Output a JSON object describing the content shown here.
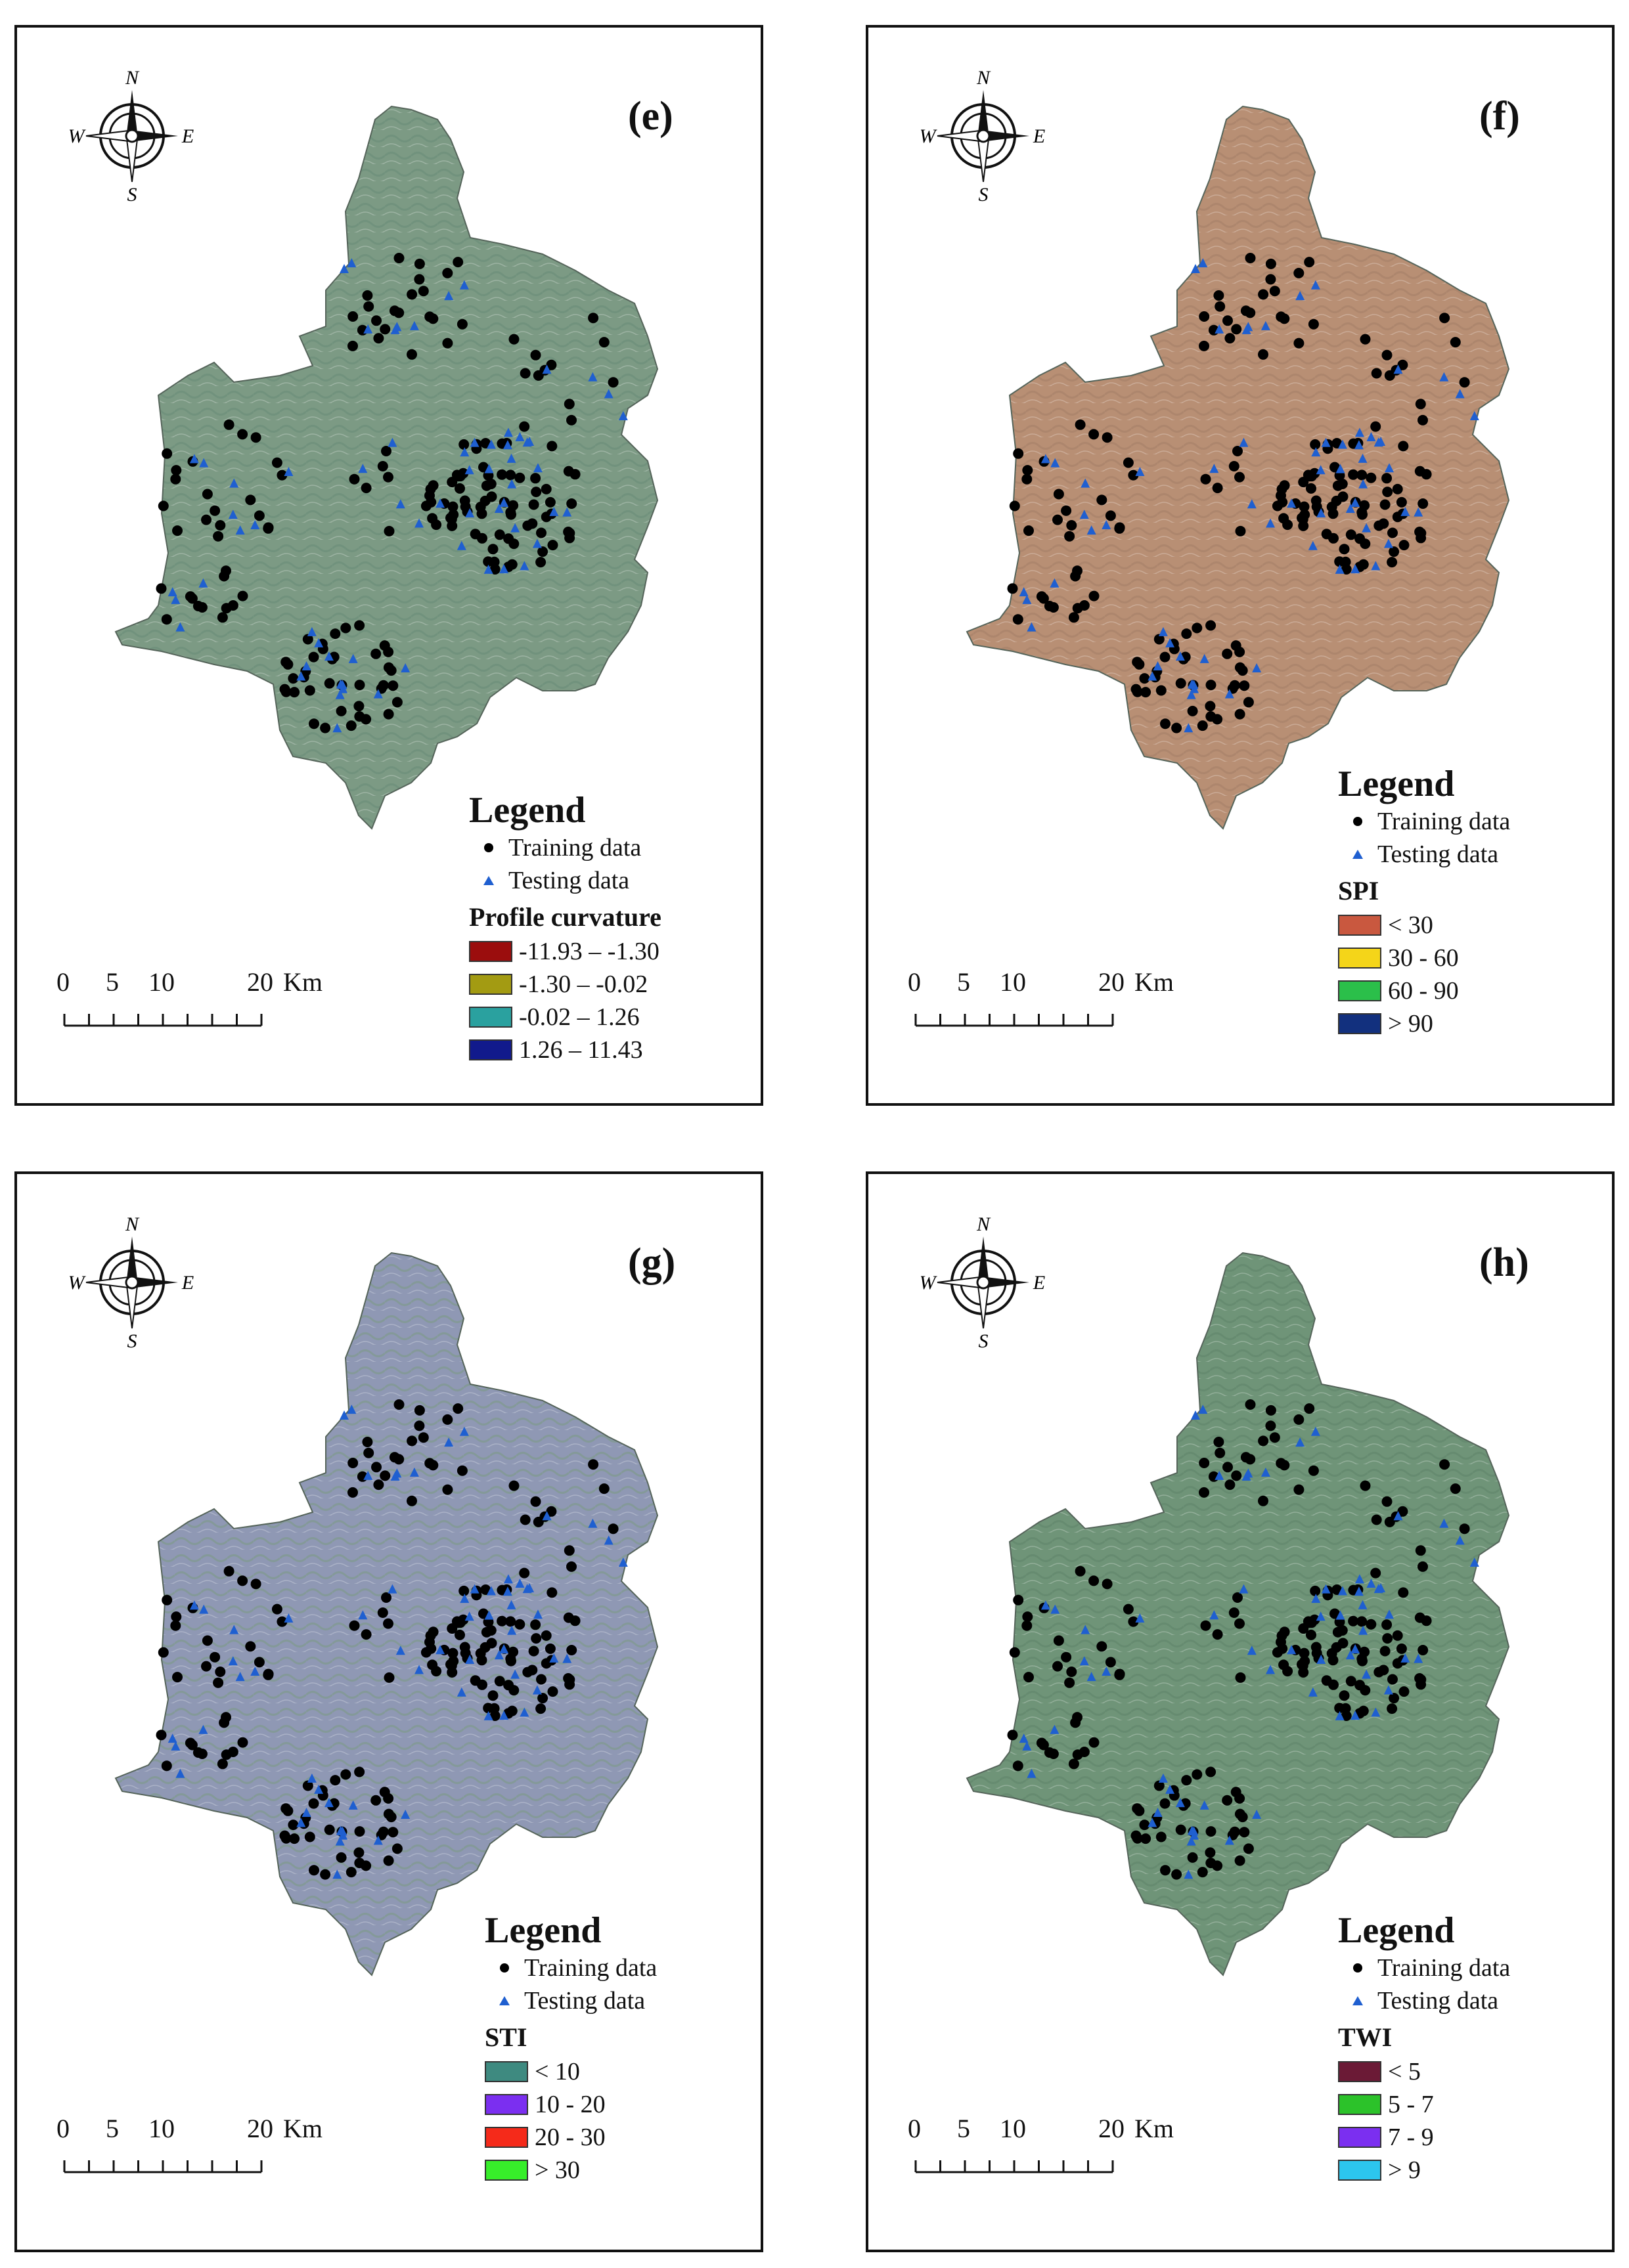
{
  "panels": [
    {
      "label": "(e)",
      "tint": "#7c9a84",
      "tint2": "#6d8f7b",
      "factor_title": "Profile curvature",
      "classes": [
        {
          "label": "-11.93 – -1.30",
          "color": "#9b0d0d"
        },
        {
          "label": "-1.30 – -0.02",
          "color": "#a39b12"
        },
        {
          "label": "-0.02 – 1.26",
          "color": "#2aa19f"
        },
        {
          "label": "1.26 – 11.43",
          "color": "#111a8c"
        }
      ]
    },
    {
      "label": "(f)",
      "tint": "#b88f74",
      "tint2": "#a98269",
      "factor_title": "SPI",
      "classes": [
        {
          "label": "< 30",
          "color": "#c9583f"
        },
        {
          "label": "30 - 60",
          "color": "#f4d519"
        },
        {
          "label": "60 - 90",
          "color": "#2bbf4a"
        },
        {
          "label": "> 90",
          "color": "#12307e"
        }
      ]
    },
    {
      "label": "(g)",
      "tint": "#8f98b4",
      "tint2": "#7f9a8e",
      "factor_title": "STI",
      "classes": [
        {
          "label": "< 10",
          "color": "#3e8a80"
        },
        {
          "label": "10 - 20",
          "color": "#7b2ff0"
        },
        {
          "label": "20 - 30",
          "color": "#f52a1a"
        },
        {
          "label": "> 30",
          "color": "#37ee2a"
        }
      ]
    },
    {
      "label": "(h)",
      "tint": "#6f9478",
      "tint2": "#62876c",
      "factor_title": "TWI",
      "classes": [
        {
          "label": "< 5",
          "color": "#6b1a36"
        },
        {
          "label": "5 - 7",
          "color": "#2cc22a"
        },
        {
          "label": "7 - 9",
          "color": "#7b2ff0"
        },
        {
          "label": "> 9",
          "color": "#2cc6ee"
        }
      ]
    }
  ],
  "legend": {
    "title": "Legend",
    "training_label": "Training data",
    "testing_label": "Testing data"
  },
  "scalebar": {
    "ticks": [
      "0",
      "5",
      "10",
      "20"
    ],
    "unit": "Km"
  },
  "compass": {
    "n": "N",
    "s": "S",
    "e": "E",
    "w": "W"
  },
  "colors": {
    "training": "#000000",
    "testing": "#1f5fd0"
  }
}
